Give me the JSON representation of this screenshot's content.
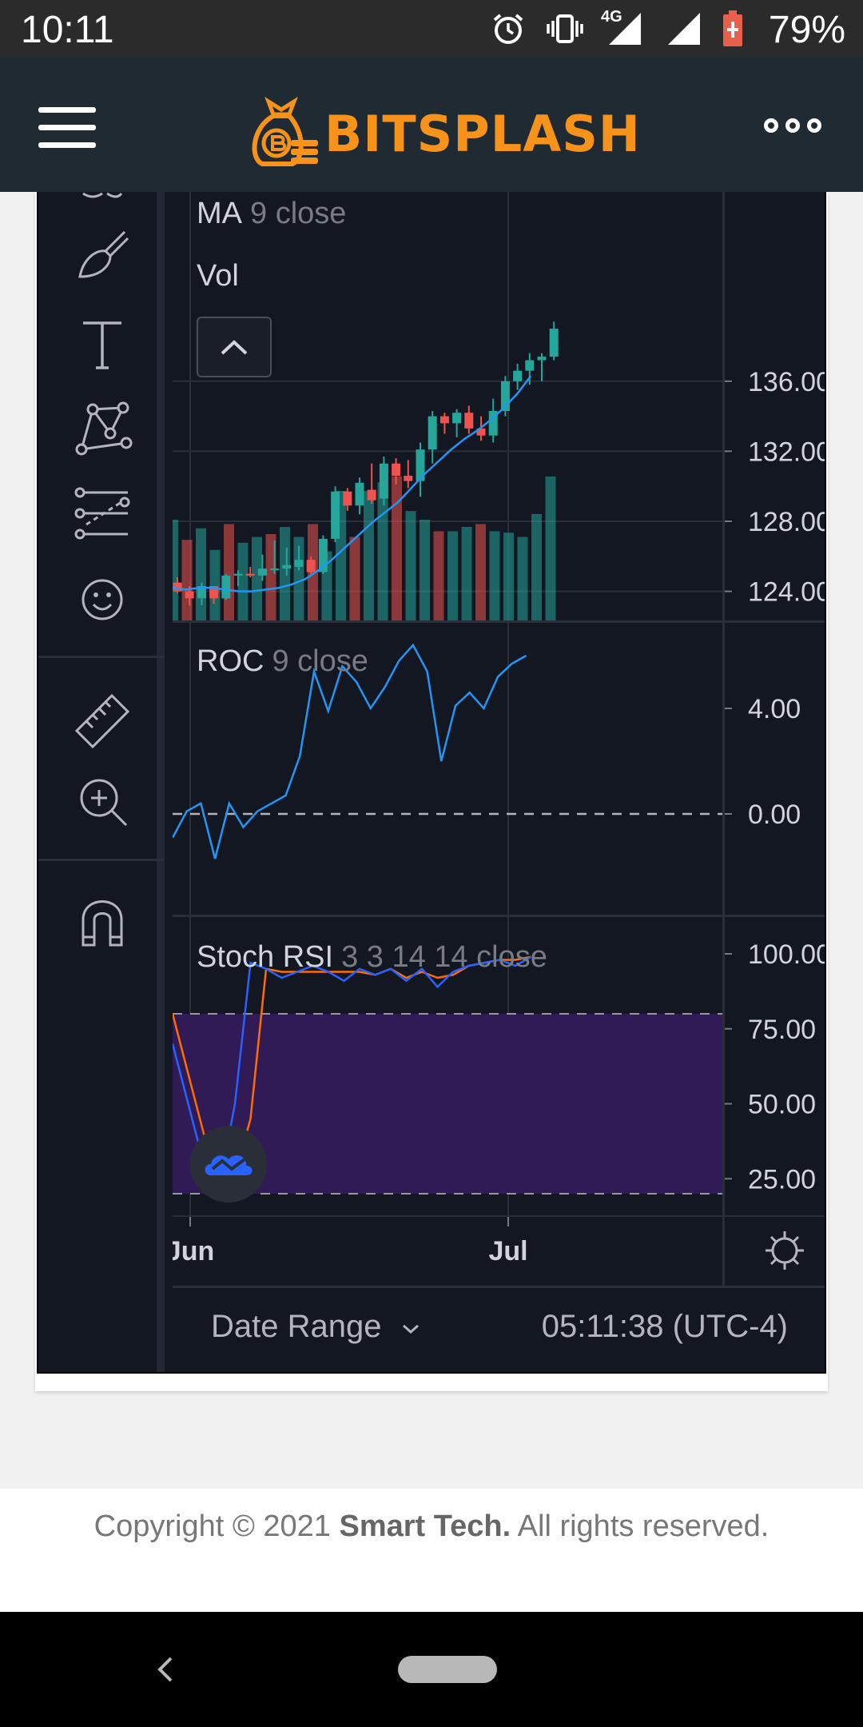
{
  "status_bar": {
    "time": "10:11",
    "network_label": "4G",
    "battery_percent": "79%",
    "icons": [
      "alarm-icon",
      "vibrate-icon",
      "signal-4g-icon",
      "signal-icon",
      "battery-icon"
    ]
  },
  "app_bar": {
    "logo_text": "BITSPLASH",
    "menu_icon": "hamburger-menu-icon",
    "more_icon": "more-dots-icon"
  },
  "toolbar": {
    "tools": [
      "brush-icon",
      "text-icon",
      "pattern-icon",
      "fib-retracement-icon",
      "emoji-icon",
      "ruler-icon",
      "zoom-in-icon",
      "magnet-icon"
    ]
  },
  "chart": {
    "price_legend": {
      "name": "MA",
      "params": "9 close"
    },
    "volume_legend": {
      "name": "Vol"
    },
    "roc_legend": {
      "name": "ROC",
      "params": "9 close"
    },
    "stoch_legend": {
      "name": "Stoch RSI",
      "params": "3 3 14 14 close"
    },
    "price_axis": [
      "136.00",
      "132.00",
      "128.00",
      "124.00"
    ],
    "roc_axis": [
      "4.00",
      "0.00"
    ],
    "stoch_axis": [
      "100.00",
      "75.00",
      "50.00",
      "25.00"
    ],
    "time_axis": [
      "Jun",
      "Jul"
    ],
    "colors": {
      "up": "#26a69a",
      "down": "#ef5350",
      "ma": "#2196f3",
      "stoch_k": "#2962ff",
      "stoch_d": "#ff6d00",
      "band": "#311b57"
    },
    "date_range_label": "Date Range",
    "clock": "05:11:38 (UTC-4)"
  },
  "chart_data": [
    {
      "type": "candlestick",
      "title": "",
      "series": [
        {
          "name": "MA",
          "values": [
            124.2,
            124.1,
            124.2,
            124.2,
            124.1,
            124.0,
            124.0,
            124.1,
            124.2,
            124.4,
            124.7,
            125.2,
            125.8,
            126.5,
            127.2,
            127.9,
            128.5,
            129.1,
            129.9,
            130.7,
            131.4,
            132.1,
            132.7,
            133.2,
            133.8,
            134.5,
            135.3,
            136.3
          ]
        }
      ],
      "ohlc": [
        [
          124.5,
          124.8,
          123.9,
          124.0
        ],
        [
          124.0,
          124.3,
          123.2,
          123.6
        ],
        [
          123.6,
          124.5,
          123.2,
          124.3
        ],
        [
          124.3,
          124.3,
          123.3,
          123.6
        ],
        [
          123.6,
          125.0,
          123.5,
          124.9
        ],
        [
          124.9,
          125.2,
          124.3,
          125.0
        ],
        [
          125.0,
          125.4,
          124.8,
          124.9
        ],
        [
          124.9,
          126.1,
          124.6,
          125.3
        ],
        [
          125.3,
          126.9,
          125.0,
          125.3
        ],
        [
          125.3,
          126.5,
          124.9,
          125.5
        ],
        [
          125.4,
          126.6,
          125.2,
          125.8
        ],
        [
          125.8,
          126.0,
          125.0,
          125.1
        ],
        [
          125.1,
          127.2,
          125.0,
          127.0
        ],
        [
          127.0,
          130.0,
          126.8,
          129.7
        ],
        [
          129.7,
          129.9,
          128.6,
          128.9
        ],
        [
          128.9,
          130.5,
          128.4,
          130.2
        ],
        [
          129.8,
          131.3,
          129.0,
          129.2
        ],
        [
          129.3,
          131.7,
          128.9,
          131.3
        ],
        [
          131.3,
          131.6,
          130.1,
          130.6
        ],
        [
          130.6,
          131.5,
          129.9,
          130.3
        ],
        [
          130.3,
          132.5,
          129.4,
          132.1
        ],
        [
          132.1,
          134.3,
          131.3,
          134.0
        ],
        [
          134.0,
          134.2,
          133.0,
          133.6
        ],
        [
          133.6,
          134.4,
          132.8,
          134.2
        ],
        [
          134.2,
          134.6,
          133.0,
          133.3
        ],
        [
          133.3,
          134.0,
          132.6,
          132.9
        ],
        [
          132.9,
          135.0,
          132.5,
          134.3
        ],
        [
          134.3,
          136.3,
          134.0,
          136.0
        ],
        [
          136.0,
          137.0,
          135.5,
          136.6
        ],
        [
          136.6,
          137.6,
          135.8,
          137.2
        ],
        [
          137.2,
          137.6,
          136.0,
          137.4
        ],
        [
          137.4,
          139.4,
          137.2,
          139.0
        ]
      ],
      "y_axis_ticks": [
        136.0,
        132.0,
        128.0,
        124.0
      ],
      "x_axis_ticks": [
        "Jun",
        "Jul"
      ]
    },
    {
      "type": "bar",
      "title": "",
      "series": [
        {
          "name": "Vol",
          "values": [
            0.7,
            0.56,
            0.64,
            0.49,
            0.67,
            0.54,
            0.58,
            0.6,
            0.65,
            0.58,
            0.67,
            0.48,
            0.9,
            0.58,
            0.9,
            0.96,
            1.0,
            0.76,
            0.7,
            0.62,
            0.62,
            0.65,
            0.67,
            0.62,
            0.61,
            0.58,
            0.74,
            1.0
          ]
        }
      ]
    },
    {
      "type": "line",
      "title": "",
      "series": [
        {
          "name": "ROC",
          "values": [
            -0.9,
            0.1,
            0.4,
            -1.7,
            0.4,
            -0.5,
            0.1,
            0.4,
            0.7,
            2.2,
            5.4,
            3.9,
            5.6,
            5.0,
            4.0,
            4.8,
            5.8,
            6.4,
            5.4,
            2.0,
            4.1,
            4.6,
            4.0,
            5.2,
            5.7,
            6.0
          ]
        }
      ],
      "y_axis_ticks": [
        4.0,
        0.0
      ]
    },
    {
      "type": "line",
      "title": "",
      "series": [
        {
          "name": "K",
          "values": [
            70,
            50,
            30,
            22,
            50,
            97,
            95,
            92,
            94,
            96,
            94,
            91,
            95,
            93,
            95,
            91,
            95,
            89,
            94,
            96,
            97,
            98,
            96,
            99
          ]
        },
        {
          "name": "D",
          "values": [
            80,
            60,
            40,
            24,
            26,
            45,
            95,
            94,
            94,
            94,
            94,
            94,
            94,
            93,
            95,
            92,
            94,
            92,
            93,
            96,
            97,
            98,
            98,
            99
          ]
        }
      ],
      "y_axis_ticks": [
        100.0,
        75.0,
        50.0,
        25.0
      ],
      "ylim": [
        20,
        100
      ]
    }
  ],
  "footer": {
    "prefix": "Copyright © 2021 ",
    "company": "Smart Tech.",
    "suffix": " All rights reserved."
  }
}
